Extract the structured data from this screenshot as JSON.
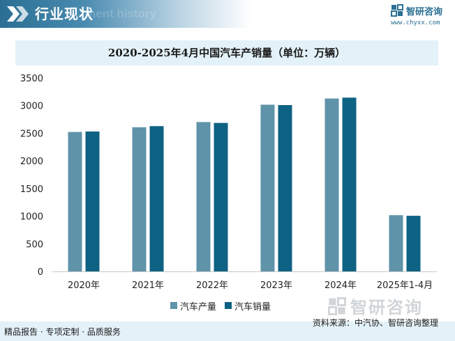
{
  "header": {
    "title": "行业现状",
    "ghost_text": "ment history"
  },
  "brand": {
    "name": "智研咨询",
    "url": "www.chyxx.com",
    "logo_icon": "brand-logo-icon"
  },
  "watermark": {
    "text": "智研咨询"
  },
  "colors": {
    "header_dark": "#2a6f93",
    "title_band": "#e3f1f8",
    "production": "#5f93aa",
    "sales": "#0e6283",
    "axis": "#c9c9c9"
  },
  "chart_data": {
    "type": "bar",
    "title": "2020-2025年4月中国汽车产销量（单位：万辆）",
    "categories": [
      "2020年",
      "2021年",
      "2022年",
      "2023年",
      "2024年",
      "2025年1-4月"
    ],
    "series": [
      {
        "name": "汽车产量",
        "values": [
          2523,
          2608,
          2702,
          3016,
          3128,
          1017
        ]
      },
      {
        "name": "汽车销量",
        "values": [
          2531,
          2628,
          2686,
          3009,
          3144,
          1006
        ]
      }
    ],
    "ylim": [
      0,
      3500
    ],
    "yticks": [
      "0",
      "500",
      "1000",
      "1500",
      "2000",
      "2500",
      "3000",
      "3500"
    ],
    "grid": false,
    "legend_position": "bottom"
  },
  "footer": {
    "left": "精品报告 · 专项定制 · 品质服务",
    "source": "资料来源：中汽协、智研咨询整理"
  }
}
